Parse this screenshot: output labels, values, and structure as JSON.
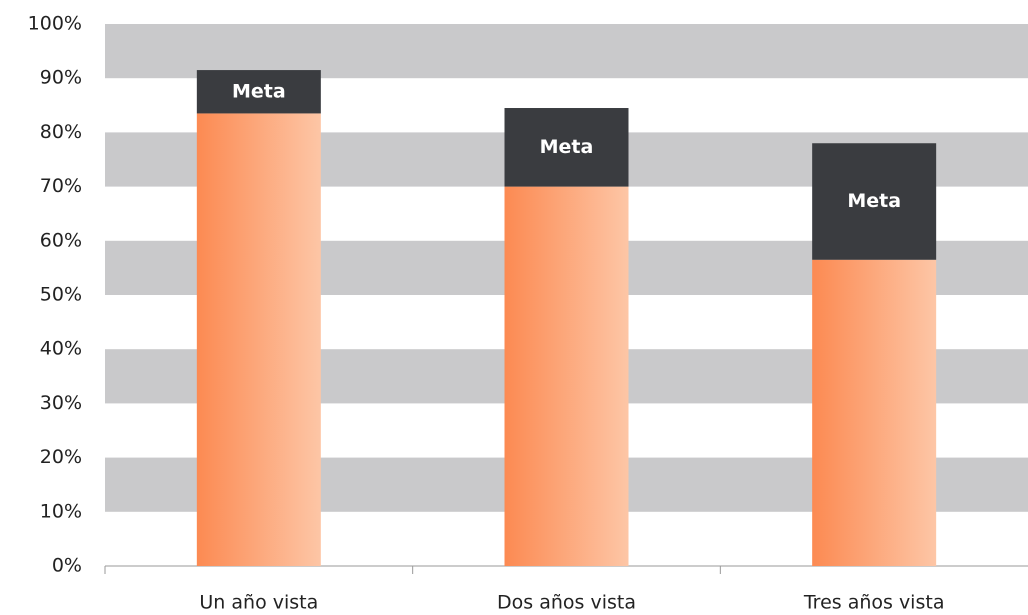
{
  "chart_data": {
    "type": "stacked_bar",
    "categories": [
      "Un año vista",
      "Dos años vista",
      "Tres años vista"
    ],
    "series": [
      {
        "color": "#fc8a52",
        "values": [
          83.5,
          70,
          56.5
        ]
      },
      {
        "name": "Meta",
        "color": "#3a3c40",
        "values": [
          8,
          14.5,
          21.5
        ]
      }
    ],
    "ylim": [
      0,
      100
    ],
    "yticks": [
      {
        "value": 0,
        "label": "0%"
      },
      {
        "value": 10,
        "label": "10%"
      },
      {
        "value": 20,
        "label": "20%"
      },
      {
        "value": 30,
        "label": "30%"
      },
      {
        "value": 40,
        "label": "40%"
      },
      {
        "value": 50,
        "label": "50%"
      },
      {
        "value": 60,
        "label": "60%"
      },
      {
        "value": 70,
        "label": "70%"
      },
      {
        "value": 80,
        "label": "80%"
      },
      {
        "value": 90,
        "label": "90%"
      },
      {
        "value": 100,
        "label": "100%"
      }
    ],
    "grid": "bands",
    "band_color": "#c9c9cb"
  }
}
